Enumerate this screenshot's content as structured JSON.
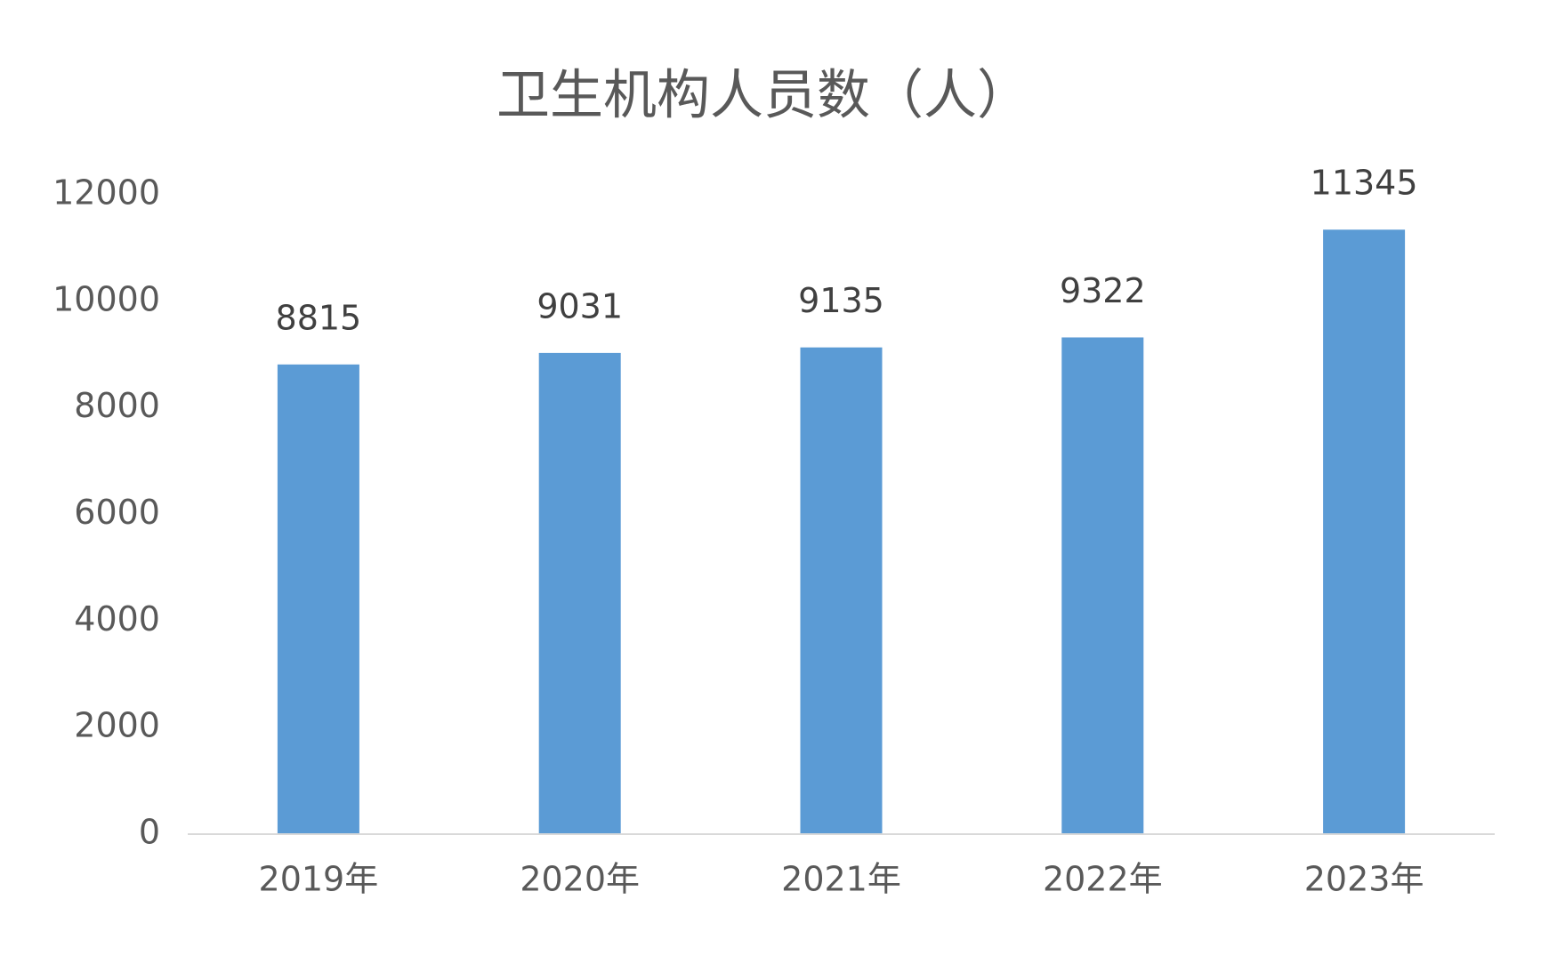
{
  "chart_data": {
    "type": "bar",
    "title": "卫生机构人员数（人）",
    "categories": [
      "2019年",
      "2020年",
      "2021年",
      "2022年",
      "2023年"
    ],
    "values": [
      8815,
      9031,
      9135,
      9322,
      11345
    ],
    "color": "#5b9bd5",
    "ylim": [
      0,
      12000
    ],
    "yticks": [
      0,
      2000,
      4000,
      6000,
      8000,
      10000,
      12000
    ],
    "grid": false,
    "data_labels": true
  }
}
